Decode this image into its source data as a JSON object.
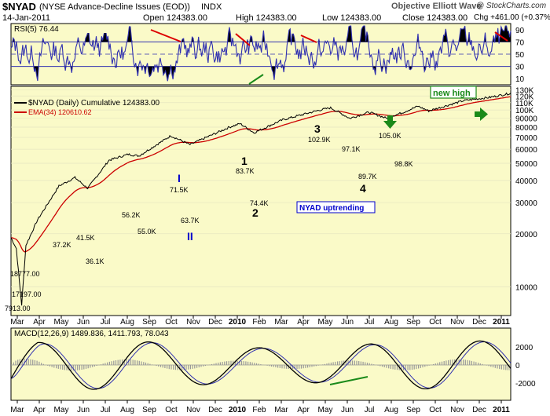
{
  "header": {
    "symbol": "$NYAD",
    "description": "(NYSE Advance-Decline Issues (EOD))",
    "index_label": "INDX",
    "date": "14-Jan-2011",
    "open": "Open 124383.00",
    "high": "High 124383.00",
    "low": "Low 124383.00",
    "close": "Close 124383.00",
    "change": "Chg +461.00 (+0.37%)",
    "watermark": "Objective Elliott Wave",
    "copyright": "@ StockCharts.com"
  },
  "colors": {
    "panel_bg": "#fafac8",
    "price_line": "#000000",
    "ema_line": "#cc0000",
    "rsi_line": "#3030b0",
    "annotation_red": "#dd0000",
    "annotation_green": "#1a8a1a",
    "annotation_blue": "#0000cc",
    "macd_hist": "#999999"
  },
  "chart_data": [
    {
      "type": "line",
      "panel": "rsi",
      "title": "RSI(5) 76.44",
      "ylim": [
        0,
        100
      ],
      "yticks": [
        10,
        30,
        50,
        70,
        90
      ],
      "overbought": 70,
      "oversold": 30,
      "last_value": 76.44
    },
    {
      "type": "line",
      "panel": "price",
      "scale": "log",
      "series": [
        {
          "name": "$NYAD (Daily) Cumulative 124383.00",
          "last_value": 124383
        },
        {
          "name": "EMA(34) 120610.62",
          "last_value": 120610.62
        }
      ],
      "yticks": [
        "10000",
        "20000",
        "30000",
        "40000",
        "50000",
        "60000",
        "70000",
        "80000",
        "90000",
        "100K",
        "110K",
        "120K",
        "130K"
      ],
      "x_ticks": [
        "Mar",
        "Apr",
        "May",
        "Jun",
        "Jul",
        "Aug",
        "Sep",
        "Oct",
        "Nov",
        "Dec",
        "2010",
        "Feb",
        "Mar",
        "Apr",
        "May",
        "Jun",
        "Jul",
        "Aug",
        "Sep",
        "Oct",
        "Nov",
        "Dec",
        "2011"
      ],
      "price_labels": [
        {
          "text": "7913.00",
          "value": 7913
        },
        {
          "text": "17197.00",
          "value": 17197
        },
        {
          "text": "18777.00",
          "value": 18777
        },
        {
          "text": "36.1K",
          "value": 36100
        },
        {
          "text": "41.5K",
          "value": 41500
        },
        {
          "text": "37.2K",
          "value": 37200
        },
        {
          "text": "56.2K",
          "value": 56200
        },
        {
          "text": "55.0K",
          "value": 55000
        },
        {
          "text": "71.5K",
          "value": 71500
        },
        {
          "text": "63.7K",
          "value": 63700
        },
        {
          "text": "83.7K",
          "value": 83700
        },
        {
          "text": "74.4K",
          "value": 74400
        },
        {
          "text": "102.9K",
          "value": 102900
        },
        {
          "text": "97.1K",
          "value": 97100
        },
        {
          "text": "89.7K",
          "value": 89700
        },
        {
          "text": "105.0K",
          "value": 105000
        },
        {
          "text": "98.8K",
          "value": 98800
        }
      ],
      "wave_labels": [
        "I",
        "II",
        "1",
        "2",
        "3",
        "4"
      ],
      "annotations": [
        "new high",
        "NYAD uptrending"
      ]
    },
    {
      "type": "line",
      "panel": "macd",
      "title": "MACD(12,26,9) 1489.836, 1411.793, 78.043",
      "yticks": [
        2000,
        0,
        -2000
      ],
      "values": {
        "macd": 1489.836,
        "signal": 1411.793,
        "histogram": 78.043
      },
      "x_ticks": [
        "Mar",
        "Apr",
        "May",
        "Jun",
        "Jul",
        "Aug",
        "Sep",
        "Oct",
        "Nov",
        "Dec",
        "2010",
        "Feb",
        "Mar",
        "Apr",
        "May",
        "Jun",
        "Jul",
        "Aug",
        "Sep",
        "Oct",
        "Nov",
        "Dec",
        "2011"
      ]
    }
  ]
}
